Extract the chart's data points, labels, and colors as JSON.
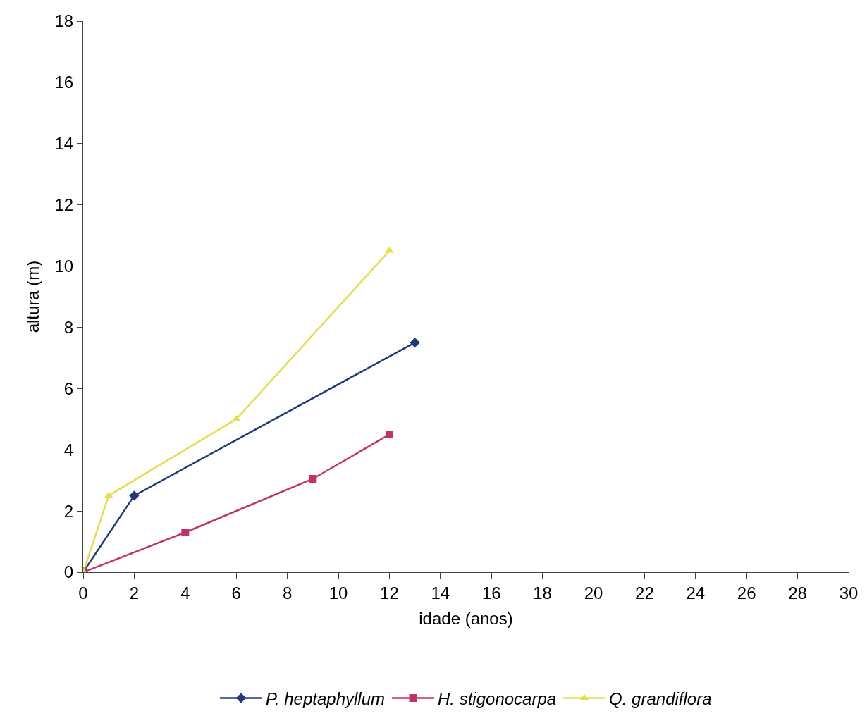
{
  "chart_data": {
    "type": "line",
    "xlabel": "idade (anos)",
    "ylabel": "altura (m)",
    "xlim": [
      0,
      30
    ],
    "xticks": [
      0,
      2,
      4,
      6,
      8,
      10,
      12,
      14,
      16,
      18,
      20,
      22,
      24,
      26,
      28,
      30
    ],
    "ylim": [
      0,
      18
    ],
    "yticks": [
      0,
      2,
      4,
      6,
      8,
      10,
      12,
      14,
      16,
      18
    ],
    "legend": "bottom",
    "series": [
      {
        "name": "P. heptaphyllum",
        "color": "#1f3a7a",
        "marker": "diamond",
        "x": [
          0,
          2,
          13
        ],
        "values": [
          0,
          2.5,
          7.5
        ]
      },
      {
        "name": "H. stigonocarpa",
        "color": "#c0336a",
        "marker": "square",
        "x": [
          0,
          4,
          9,
          12
        ],
        "values": [
          0,
          1.3,
          3.05,
          4.5
        ]
      },
      {
        "name": "Q. grandiflora",
        "color": "#e6dc50",
        "marker": "triangle",
        "x": [
          0,
          1,
          6,
          12
        ],
        "values": [
          0,
          2.5,
          5,
          10.5
        ]
      }
    ]
  }
}
